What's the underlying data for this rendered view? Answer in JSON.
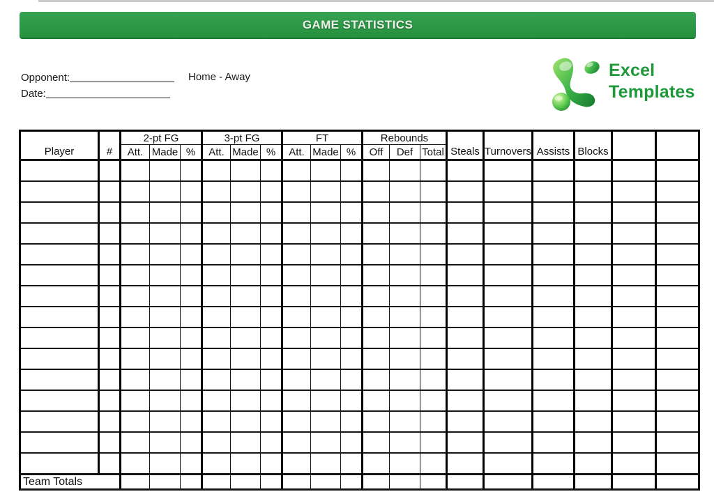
{
  "page": {
    "top_strip_color": "#cbcbcb",
    "background": "#ffffff"
  },
  "title_bar": {
    "label": "GAME STATISTICS",
    "bg_top": "#35a352",
    "bg_bottom": "#27903f",
    "edge_color": "#1b7a31",
    "text_color": "#eef0ea"
  },
  "meta": {
    "opponent_label": "Opponent:",
    "home_away_label": "Home - Away",
    "date_label": "Date:"
  },
  "logo": {
    "line1": "Excel",
    "line2": "Templates",
    "text_color": "#1e9839",
    "mark": "excel-green-swoosh"
  },
  "table": {
    "header": {
      "player": "Player",
      "number": "#",
      "group_2pt": "2-pt FG",
      "group_3pt": "3-pt FG",
      "group_ft": "FT",
      "group_rebounds": "Rebounds",
      "att": "Att.",
      "made": "Made",
      "pct": "%",
      "off": "Off",
      "def": "Def",
      "total": "Total",
      "steals": "Steals",
      "turnovers": "Turnovers",
      "assists": "Assists",
      "blocks": "Blocks",
      "extra_1": "",
      "extra_2": ""
    },
    "body_row_count": 15,
    "footer": {
      "label": "Team Totals"
    }
  }
}
